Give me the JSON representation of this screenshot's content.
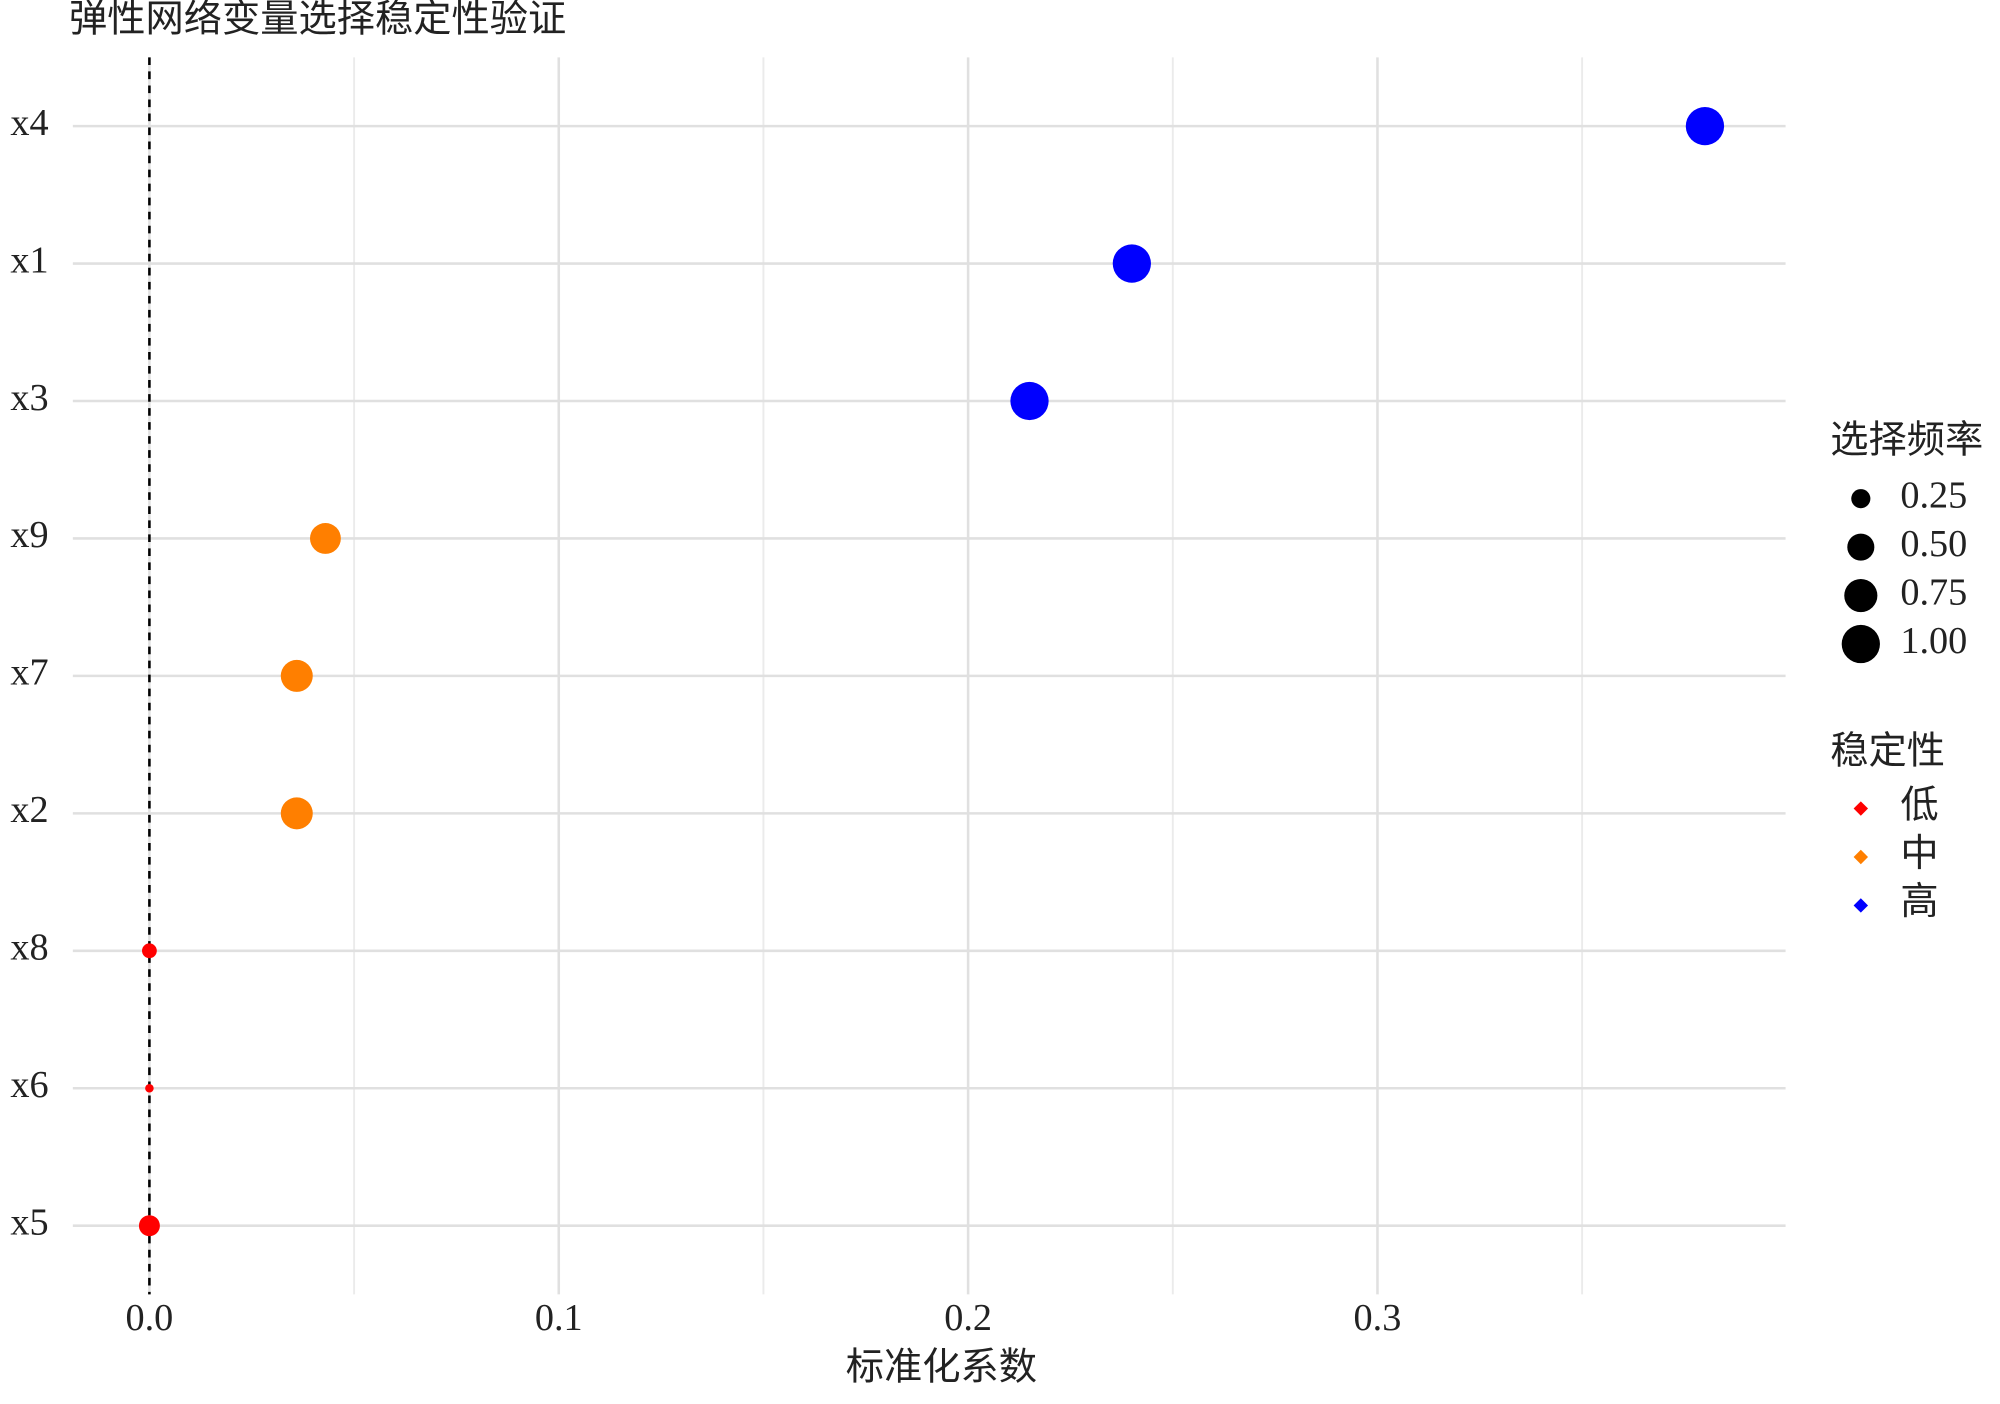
{
  "chart_data": {
    "type": "dot",
    "title": "弹性网络变量选择稳定性验证",
    "x_label": "标准化系数",
    "categories": [
      "x4",
      "x1",
      "x3",
      "x9",
      "x7",
      "x2",
      "x8",
      "x6",
      "x5"
    ],
    "series": [
      {
        "name": "低",
        "color": "#ff0000",
        "values": [
          null,
          null,
          null,
          null,
          null,
          null,
          0,
          0,
          0
        ],
        "sizes": [
          null,
          null,
          null,
          null,
          null,
          null,
          0.15,
          0.05,
          0.3
        ]
      },
      {
        "name": "中",
        "color": "#ff7f00",
        "values": [
          null,
          null,
          null,
          0.043,
          0.036,
          0.036,
          null,
          null,
          null
        ],
        "sizes": [
          null,
          null,
          null,
          0.65,
          0.7,
          0.7,
          null,
          null,
          null
        ]
      },
      {
        "name": "高",
        "color": "#0000ff",
        "values": [
          0.38,
          0.24,
          0.215,
          null,
          null,
          null,
          null,
          null,
          null
        ],
        "sizes": [
          1,
          1,
          1,
          null,
          null,
          null,
          null,
          null,
          null
        ]
      }
    ],
    "xlim": [
      -0.0187,
      0.3997
    ],
    "xticks": [
      {
        "value": 0,
        "label": "0.0"
      },
      {
        "value": 0.1,
        "label": "0.1"
      },
      {
        "value": 0.2,
        "label": "0.2"
      },
      {
        "value": 0.3,
        "label": "0.3"
      }
    ],
    "xminor": [
      0.05,
      0.15,
      0.25,
      0.35
    ],
    "vline": 0,
    "grid": true,
    "size_legend": {
      "title": "选择频率",
      "values": [
        {
          "value": 0.25,
          "label": "0.25"
        },
        {
          "value": 0.5,
          "label": "0.50"
        },
        {
          "value": 0.75,
          "label": "0.75"
        },
        {
          "value": 1,
          "label": "1.00"
        }
      ]
    },
    "color_legend_title": "稳定性",
    "legend_position": "right"
  }
}
